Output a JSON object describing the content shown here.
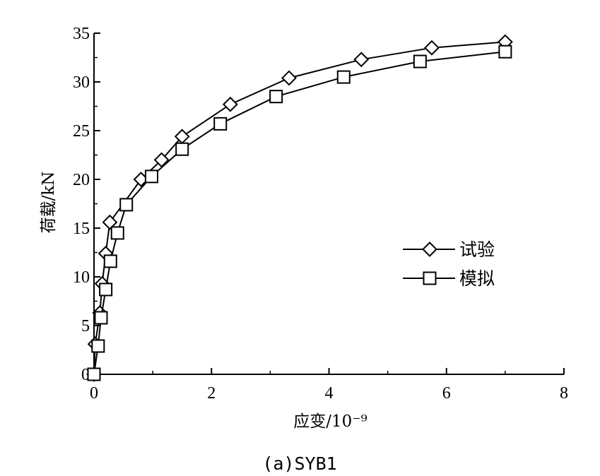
{
  "chart_data": {
    "type": "line",
    "caption": "(a)SYB1",
    "xlabel": "应变/10⁻⁹",
    "ylabel": "荷载/kN",
    "xlim": [
      0,
      8
    ],
    "ylim": [
      0,
      35
    ],
    "x_ticks": [
      "0",
      "2",
      "4",
      "6",
      "8"
    ],
    "y_ticks": [
      "0",
      "5",
      "10",
      "15",
      "20",
      "25",
      "30",
      "35"
    ],
    "grid": false,
    "legend": "right",
    "series": [
      {
        "name": "试验",
        "marker": "diamond",
        "x": [
          0,
          0.02,
          0.1,
          0.14,
          0.2,
          0.27,
          0.8,
          1.15,
          1.5,
          2.32,
          3.32,
          4.55,
          5.75,
          7.0
        ],
        "y": [
          0,
          3.1,
          6.3,
          9.3,
          12.4,
          15.6,
          20.0,
          22.0,
          24.4,
          27.7,
          30.4,
          32.3,
          33.5,
          34.1
        ]
      },
      {
        "name": "模拟",
        "marker": "square",
        "x": [
          0,
          0.07,
          0.12,
          0.2,
          0.28,
          0.4,
          0.55,
          0.98,
          1.5,
          2.15,
          3.1,
          4.25,
          5.55,
          7.0
        ],
        "y": [
          0,
          2.9,
          5.8,
          8.7,
          11.6,
          14.5,
          17.4,
          20.3,
          23.1,
          25.7,
          28.5,
          30.5,
          32.1,
          33.1
        ]
      }
    ]
  }
}
